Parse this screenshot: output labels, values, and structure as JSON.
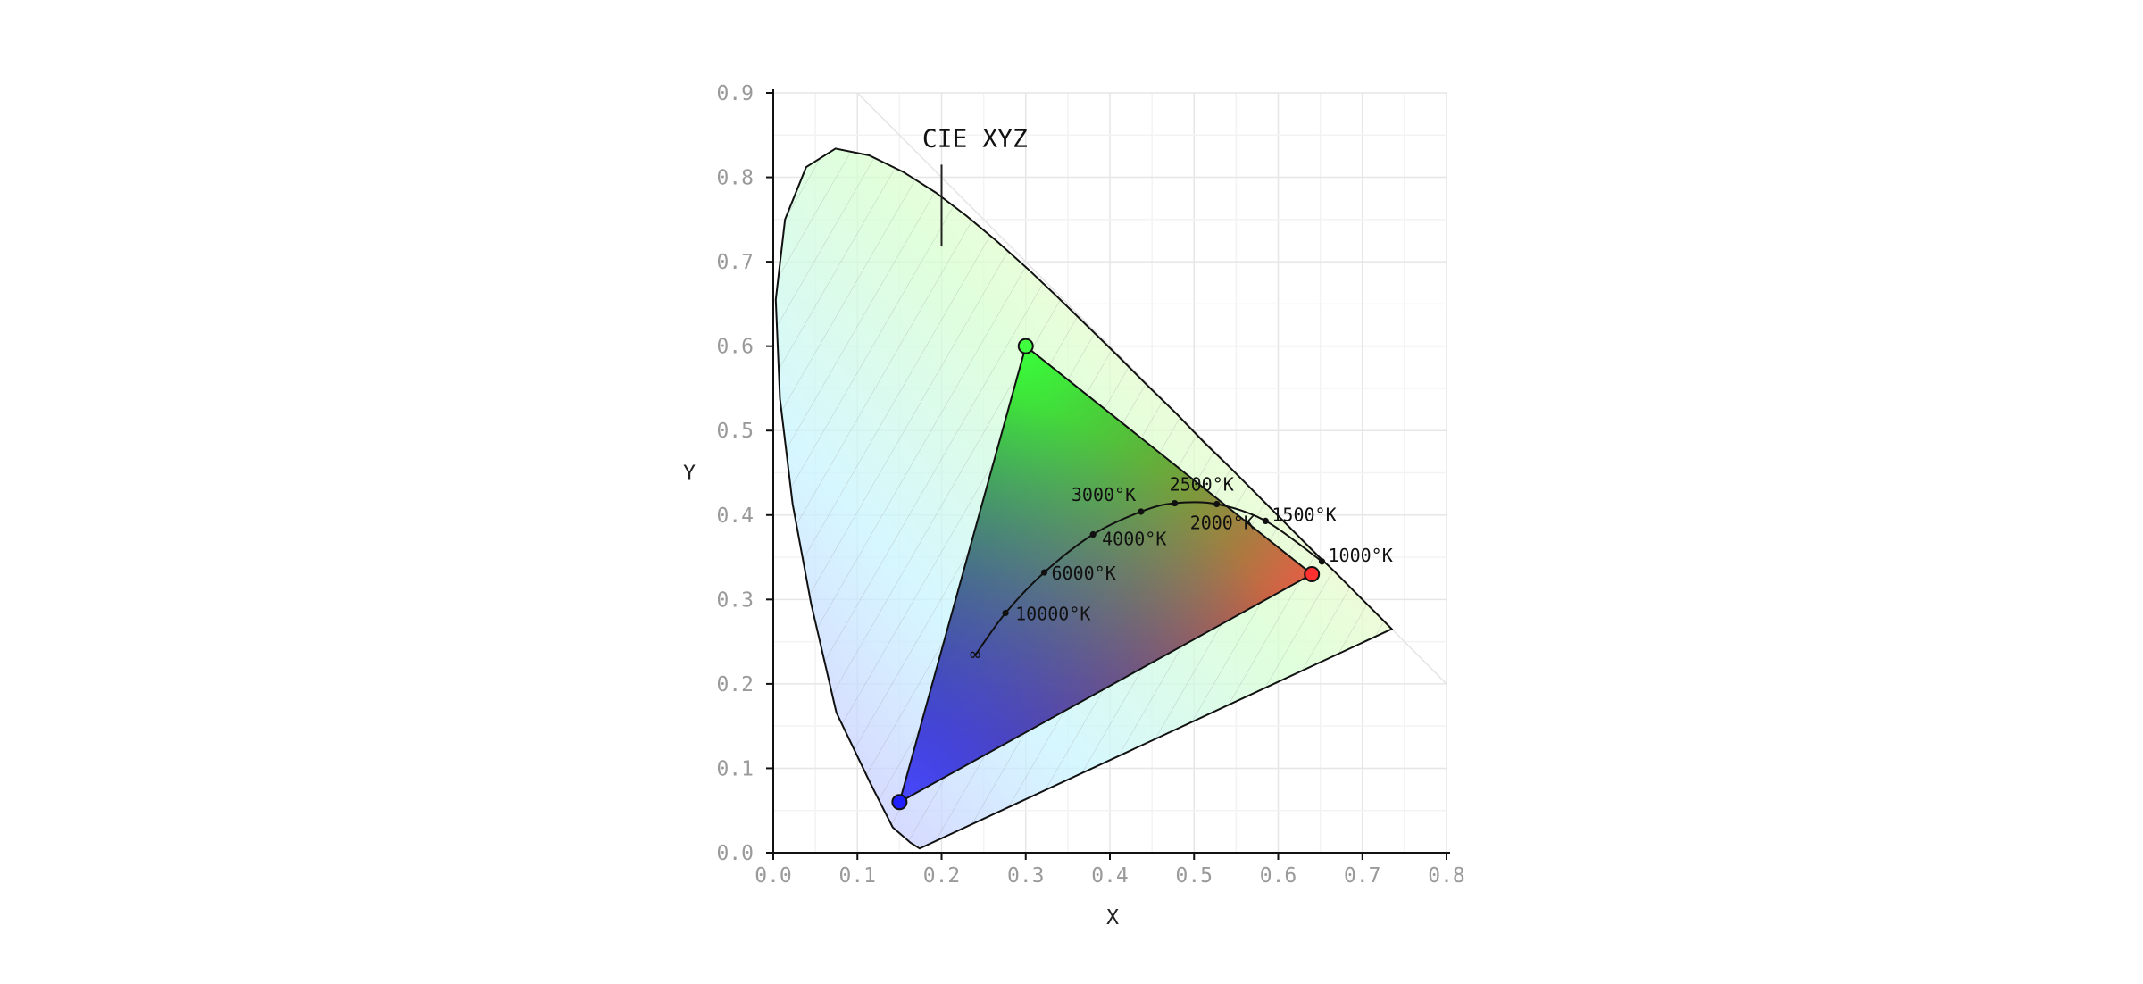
{
  "chart_data": {
    "type": "scatter",
    "title": "CIE XYZ",
    "xlabel": "X",
    "ylabel": "Y",
    "xlim": [
      0.0,
      0.8
    ],
    "ylim": [
      0.0,
      0.9
    ],
    "grid": true,
    "x_ticks": [
      "0.0",
      "0.1",
      "0.2",
      "0.3",
      "0.4",
      "0.5",
      "0.6",
      "0.7",
      "0.8"
    ],
    "y_ticks": [
      "0.0",
      "0.1",
      "0.2",
      "0.3",
      "0.4",
      "0.5",
      "0.6",
      "0.7",
      "0.8",
      "0.9"
    ],
    "spectral_locus": [
      [
        0.174,
        0.005
      ],
      [
        0.163,
        0.012
      ],
      [
        0.142,
        0.03
      ],
      [
        0.115,
        0.083
      ],
      [
        0.075,
        0.166
      ],
      [
        0.045,
        0.295
      ],
      [
        0.023,
        0.413
      ],
      [
        0.008,
        0.538
      ],
      [
        0.003,
        0.655
      ],
      [
        0.014,
        0.75
      ],
      [
        0.039,
        0.812
      ],
      [
        0.074,
        0.834
      ],
      [
        0.114,
        0.826
      ],
      [
        0.155,
        0.806
      ],
      [
        0.193,
        0.782
      ],
      [
        0.23,
        0.754
      ],
      [
        0.266,
        0.724
      ],
      [
        0.302,
        0.692
      ],
      [
        0.337,
        0.659
      ],
      [
        0.373,
        0.624
      ],
      [
        0.409,
        0.589
      ],
      [
        0.444,
        0.554
      ],
      [
        0.479,
        0.52
      ],
      [
        0.512,
        0.486
      ],
      [
        0.545,
        0.454
      ],
      [
        0.575,
        0.424
      ],
      [
        0.603,
        0.396
      ],
      [
        0.627,
        0.372
      ],
      [
        0.648,
        0.351
      ],
      [
        0.666,
        0.334
      ],
      [
        0.68,
        0.32
      ],
      [
        0.692,
        0.308
      ],
      [
        0.702,
        0.298
      ],
      [
        0.712,
        0.288
      ],
      [
        0.724,
        0.276
      ],
      [
        0.735,
        0.265
      ]
    ],
    "gamut": {
      "red": [
        0.64,
        0.33
      ],
      "green": [
        0.3,
        0.6
      ],
      "blue": [
        0.15,
        0.06
      ]
    },
    "planckian_locus": [
      {
        "temp": "1000°K",
        "x": 0.652,
        "y": 0.345
      },
      {
        "temp": "1500°K",
        "x": 0.585,
        "y": 0.393
      },
      {
        "temp": "2000°K",
        "x": 0.527,
        "y": 0.413
      },
      {
        "temp": "2500°K",
        "x": 0.477,
        "y": 0.414
      },
      {
        "temp": "3000°K",
        "x": 0.437,
        "y": 0.404
      },
      {
        "temp": "4000°K",
        "x": 0.38,
        "y": 0.377
      },
      {
        "temp": "6000°K",
        "x": 0.322,
        "y": 0.332
      },
      {
        "temp": "10000°K",
        "x": 0.276,
        "y": 0.284
      },
      {
        "temp": "∞",
        "x": 0.24,
        "y": 0.234
      }
    ],
    "legend": "none"
  }
}
